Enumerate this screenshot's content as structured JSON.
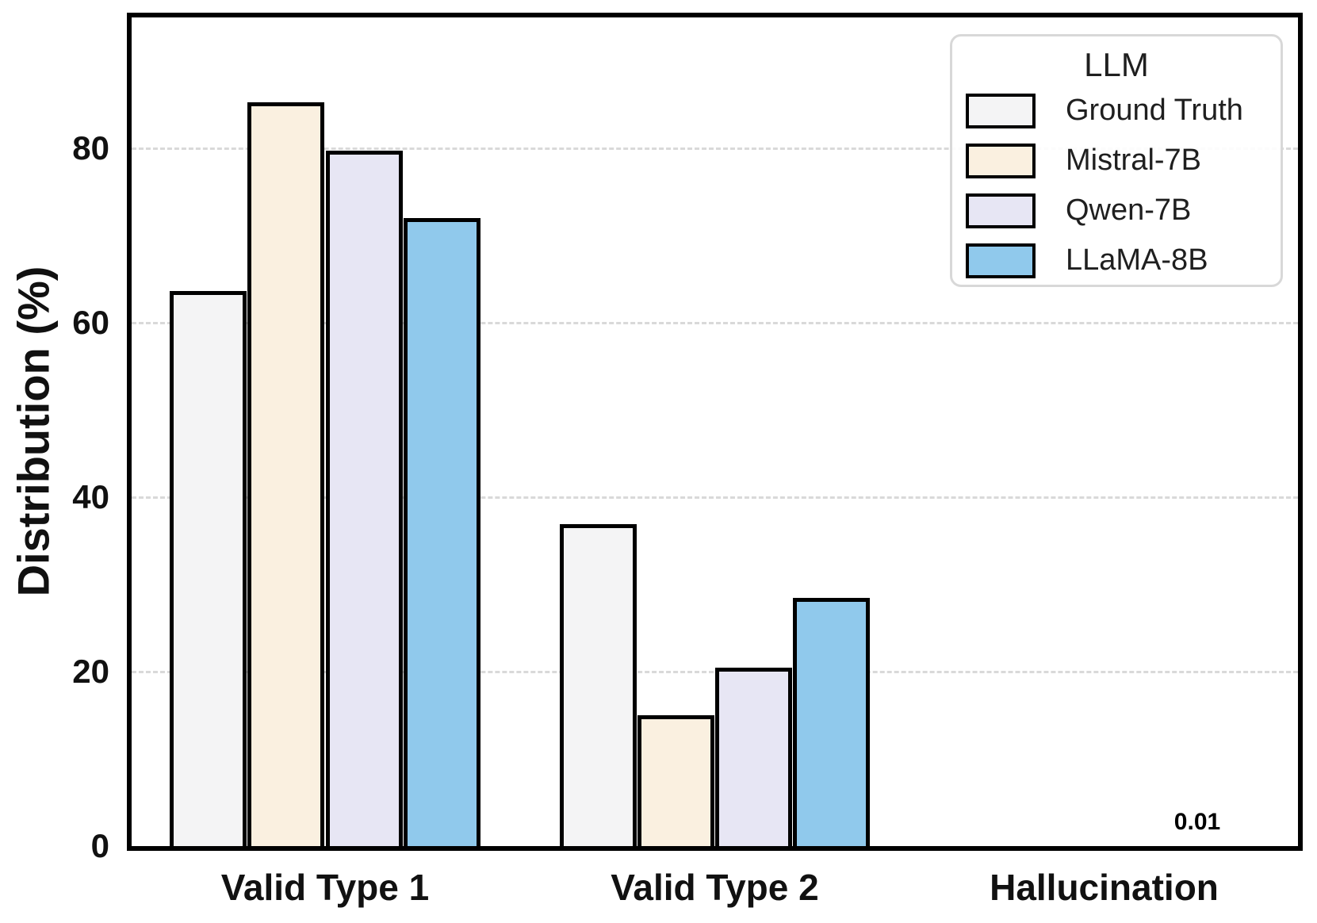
{
  "chart_data": {
    "type": "bar",
    "title": "",
    "categories": [
      "Valid Type 1",
      "Valid Type 2",
      "Hallucination"
    ],
    "series": [
      {
        "name": "Ground Truth",
        "color": "#f4f4f5",
        "values": [
          63.4,
          36.6,
          0
        ]
      },
      {
        "name": "Mistral-7B",
        "color": "#faf0e0",
        "values": [
          85.0,
          14.7,
          0
        ]
      },
      {
        "name": "Qwen-7B",
        "color": "#e7e6f4",
        "values": [
          79.5,
          20.2,
          0
        ]
      },
      {
        "name": "LLaMA-8B",
        "color": "#90c9ec",
        "values": [
          71.7,
          28.2,
          0.01
        ]
      }
    ],
    "xlabel": "",
    "ylabel": "Distribution (%)",
    "ylim": [
      0,
      95
    ],
    "yticks": [
      0,
      20,
      40,
      60,
      80
    ],
    "grid": "horizontal-dashed",
    "bar_edge_color": "#000000",
    "legend": {
      "title": "LLM",
      "position": "upper-right"
    },
    "annotations": [
      {
        "text": "0.01",
        "category": "Hallucination",
        "series": "LLaMA-8B"
      }
    ]
  }
}
